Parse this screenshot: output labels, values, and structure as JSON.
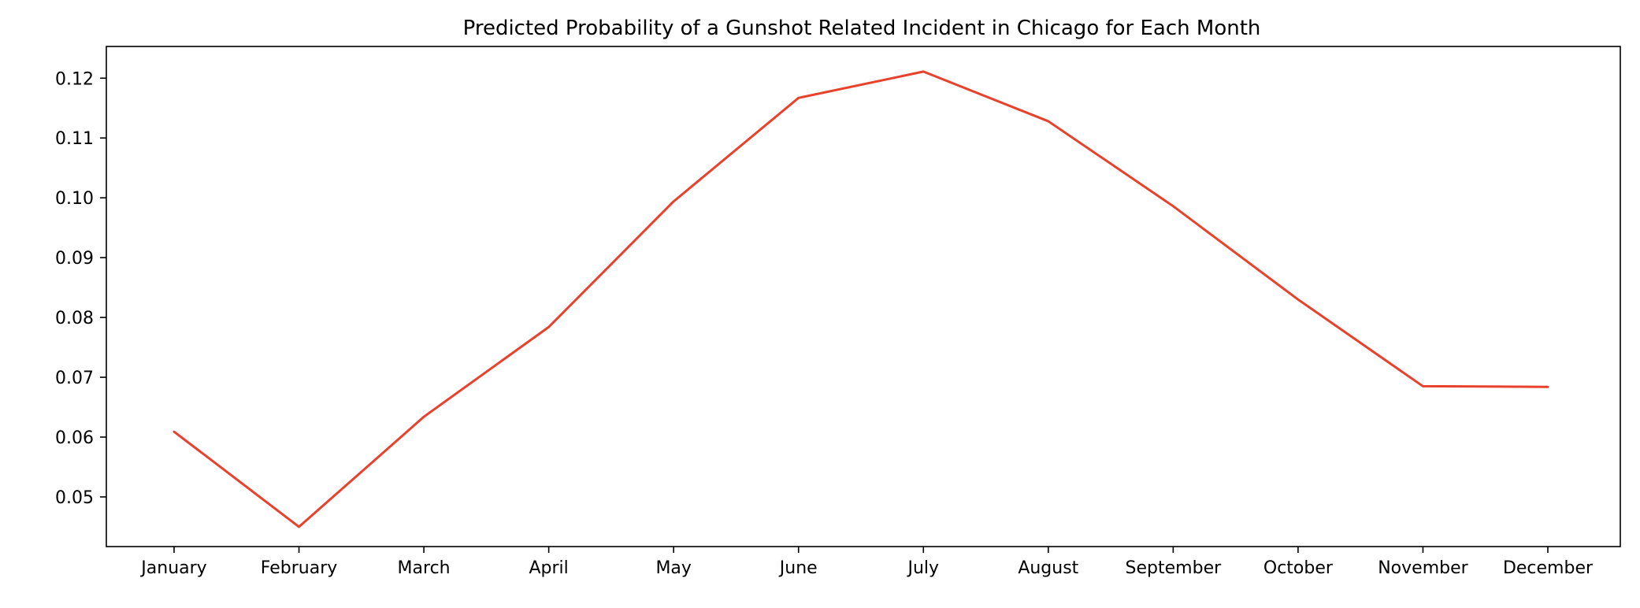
{
  "chart_data": {
    "type": "line",
    "title": "Predicted Probability of a Gunshot Related Incident in Chicago for Each Month",
    "xlabel": "",
    "ylabel": "",
    "categories": [
      "January",
      "February",
      "March",
      "April",
      "May",
      "June",
      "July",
      "August",
      "September",
      "October",
      "November",
      "December"
    ],
    "series": [
      {
        "values": [
          0.0609,
          0.045,
          0.0634,
          0.0784,
          0.0994,
          0.1167,
          0.1211,
          0.1128,
          0.0986,
          0.083,
          0.0685,
          0.0684
        ],
        "color": "#e8412c"
      }
    ],
    "ylim": [
      0.0417,
      0.1253
    ],
    "yticks": [
      0.05,
      0.06,
      0.07,
      0.08,
      0.09,
      0.1,
      0.11,
      0.12
    ],
    "ytick_labels": [
      "0.05",
      "0.06",
      "0.07",
      "0.08",
      "0.09",
      "0.10",
      "0.11",
      "0.12"
    ],
    "grid": false,
    "legend": "none"
  }
}
